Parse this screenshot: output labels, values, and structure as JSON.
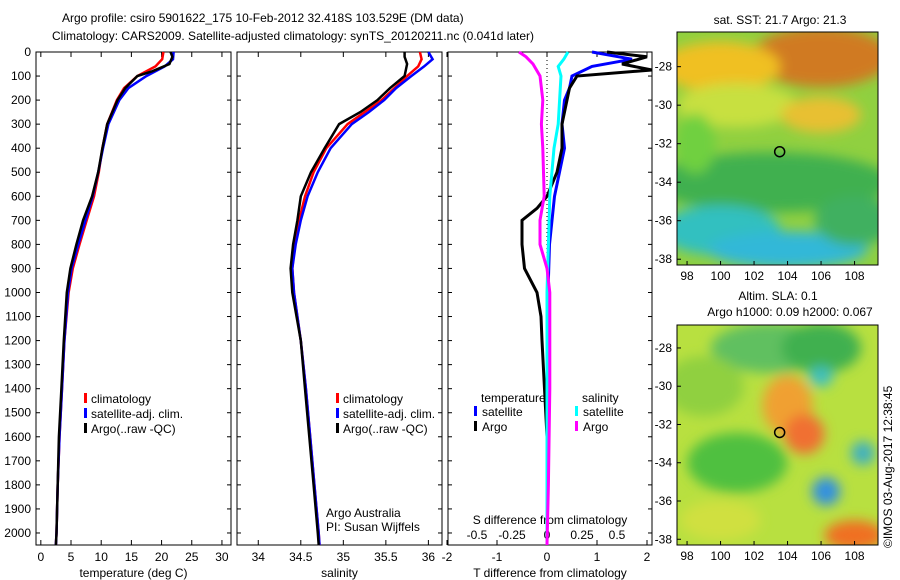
{
  "title_line1": "Argo profile: csiro 5901622_175 10-Feb-2012 32.418S 103.529E (DM data)",
  "title_line2": "Climatology: CARS2009. Satellite-adjusted climatology: synTS_20120211.nc (0.041d later)",
  "colors": {
    "climatology": "#ff0000",
    "satellite": "#0000ff",
    "argo": "#000000",
    "s_satellite": "#00ffff",
    "s_argo": "#ff00ff"
  },
  "chart_data": [
    {
      "type": "line",
      "name": "temperature",
      "xlabel": "temperature (deg C)",
      "ylabel": "depth",
      "xlim": [
        -0.8,
        31.5
      ],
      "ylim": [
        2050,
        0
      ],
      "xticks": [
        0,
        5,
        10,
        15,
        20,
        25,
        30
      ],
      "yticks": [
        0,
        100,
        200,
        300,
        400,
        500,
        600,
        700,
        800,
        900,
        1000,
        1100,
        1200,
        1300,
        1400,
        1500,
        1600,
        1700,
        1800,
        1900,
        2000
      ],
      "legend": [
        "climatology",
        "satellite-adj. clim.",
        "Argo(..raw -QC)"
      ],
      "series": [
        {
          "name": "climatology",
          "color": "#ff0000",
          "depth": [
            0,
            30,
            60,
            100,
            150,
            200,
            300,
            400,
            500,
            600,
            700,
            800,
            900,
            1000,
            1200,
            1400,
            1600,
            1800,
            2000,
            2050
          ],
          "values": [
            20.3,
            20.1,
            19,
            16,
            13.8,
            12.6,
            11,
            10.2,
            9.6,
            8.8,
            7.6,
            6.4,
            5.3,
            4.6,
            3.9,
            3.5,
            3.1,
            2.8,
            2.6,
            2.5
          ]
        },
        {
          "name": "satellite-adj. clim.",
          "color": "#0000ff",
          "depth": [
            0,
            30,
            60,
            100,
            150,
            200,
            300,
            400,
            500,
            600,
            700,
            800,
            900,
            1000,
            1200,
            1400,
            1600,
            1800,
            2000,
            2050
          ],
          "values": [
            22,
            21.9,
            20.5,
            17.5,
            14.5,
            13,
            11.2,
            10.3,
            9.5,
            8.6,
            7.4,
            6.2,
            5.1,
            4.5,
            3.9,
            3.5,
            3.1,
            2.8,
            2.6,
            2.5
          ]
        },
        {
          "name": "Argo(..raw -QC)",
          "color": "#000000",
          "depth": [
            0,
            20,
            50,
            80,
            100,
            150,
            200,
            300,
            400,
            500,
            600,
            700,
            800,
            900,
            1000,
            1200,
            1400,
            1600,
            1800,
            2000,
            2050
          ],
          "values": [
            21.5,
            21.8,
            21.3,
            18.5,
            16,
            14,
            12.7,
            11,
            10.2,
            9.5,
            8.5,
            7,
            5.9,
            4.9,
            4.3,
            3.8,
            3.4,
            3.0,
            2.8,
            2.6,
            2.5
          ]
        }
      ],
      "annotation": []
    },
    {
      "type": "line",
      "name": "salinity",
      "xlabel": "salinity",
      "xlim": [
        33.75,
        36.16
      ],
      "ylim": [
        2050,
        0
      ],
      "xticks": [
        34,
        34.5,
        35,
        35.5,
        36
      ],
      "xticklabels": [
        "34",
        "34.5",
        "35",
        "35.5",
        "36"
      ],
      "legend": [
        "climatology",
        "satellite-adj. clim.",
        "Argo(..raw -QC)"
      ],
      "annotation": [
        "Argo Australia",
        "PI: Susan Wijffels"
      ],
      "series": [
        {
          "name": "climatology",
          "color": "#ff0000",
          "depth": [
            0,
            30,
            60,
            100,
            150,
            200,
            250,
            300,
            400,
            500,
            600,
            700,
            800,
            900,
            1000,
            1200,
            1400,
            1600,
            1800,
            2000,
            2050
          ],
          "values": [
            35.9,
            35.92,
            35.88,
            35.75,
            35.6,
            35.45,
            35.25,
            35.05,
            34.8,
            34.65,
            34.55,
            34.48,
            34.43,
            34.4,
            34.42,
            34.5,
            34.56,
            34.61,
            34.66,
            34.71,
            34.72
          ]
        },
        {
          "name": "satellite-adj. clim.",
          "color": "#0000ff",
          "depth": [
            0,
            30,
            60,
            100,
            150,
            200,
            250,
            300,
            400,
            500,
            600,
            700,
            800,
            900,
            1000,
            1200,
            1400,
            1600,
            1800,
            2000,
            2050
          ],
          "values": [
            36.0,
            36.05,
            35.95,
            35.8,
            35.62,
            35.48,
            35.3,
            35.1,
            34.85,
            34.7,
            34.58,
            34.5,
            34.44,
            34.4,
            34.42,
            34.5,
            34.56,
            34.61,
            34.66,
            34.71,
            34.72
          ]
        },
        {
          "name": "Argo(..raw -QC)",
          "color": "#000000",
          "depth": [
            0,
            20,
            50,
            100,
            150,
            200,
            250,
            300,
            400,
            500,
            600,
            700,
            800,
            900,
            1000,
            1200,
            1400,
            1600,
            1800,
            2000,
            2050
          ],
          "values": [
            35.72,
            35.72,
            35.75,
            35.72,
            35.55,
            35.4,
            35.2,
            34.95,
            34.78,
            34.62,
            34.5,
            34.46,
            34.41,
            34.38,
            34.4,
            34.5,
            34.55,
            34.6,
            34.65,
            34.7,
            34.71
          ]
        }
      ]
    },
    {
      "type": "line",
      "name": "difference",
      "xlabel": "T difference from climatology",
      "x2label": "S difference from climatology",
      "xlim": [
        -1.98,
        2.1
      ],
      "ylim": [
        2050,
        0
      ],
      "xticks": [
        -2,
        -1,
        0,
        1,
        2
      ],
      "xticklabels": [
        "-2",
        "-1",
        "0",
        "1",
        "2"
      ],
      "s_ticks": [
        -0.5,
        -0.25,
        0,
        0.25,
        0.5
      ],
      "s_ticklabels": [
        "-0.5",
        "-0.25",
        "0",
        "0.25",
        "0.5"
      ],
      "legend_temperature": [
        "temperature",
        "satellite",
        "Argo"
      ],
      "legend_salinity": [
        "salinity",
        "satellite",
        "Argo"
      ],
      "series": [
        {
          "name": "T satellite",
          "axis": "T",
          "color": "#0000ff",
          "depth": [
            0,
            30,
            60,
            100,
            150,
            200,
            300,
            400,
            500,
            600,
            800,
            1000,
            1200,
            1400,
            1600,
            1700
          ],
          "values": [
            0.9,
            1.7,
            0.9,
            0.5,
            0.45,
            0.35,
            0.3,
            0.35,
            0.25,
            0.15,
            0.05,
            0.02,
            0,
            0,
            0,
            0
          ]
        },
        {
          "name": "T Argo",
          "axis": "T",
          "color": "#000000",
          "depth": [
            0,
            20,
            50,
            75,
            100,
            150,
            200,
            300,
            400,
            500,
            600,
            650,
            700,
            800,
            900,
            1000,
            1100,
            1200,
            1400,
            1600,
            1700
          ],
          "values": [
            1.2,
            2.0,
            1.5,
            2.1,
            0.6,
            0.45,
            0.4,
            0.3,
            0.3,
            0.2,
            0.0,
            -0.2,
            -0.5,
            -0.5,
            -0.45,
            -0.2,
            -0.12,
            -0.1,
            -0.05,
            0,
            0
          ]
        },
        {
          "name": "S satellite",
          "axis": "S",
          "color": "#00ffff",
          "depth": [
            0,
            30,
            60,
            100,
            200,
            300,
            400,
            600,
            800,
            1000,
            1400,
            2050
          ],
          "values": [
            0.15,
            0.12,
            0.08,
            0.1,
            0.09,
            0.08,
            0.05,
            0.02,
            0.01,
            0,
            0,
            0
          ]
        },
        {
          "name": "S Argo",
          "axis": "S",
          "color": "#ff00ff",
          "depth": [
            0,
            20,
            50,
            100,
            200,
            300,
            400,
            600,
            700,
            800,
            900,
            1000,
            1200,
            1400,
            1800,
            2050
          ],
          "values": [
            -0.2,
            -0.15,
            -0.1,
            -0.05,
            -0.03,
            -0.04,
            -0.03,
            -0.02,
            -0.05,
            -0.05,
            0,
            0.02,
            0.02,
            0.02,
            0.01,
            0
          ]
        }
      ]
    },
    {
      "type": "heatmap",
      "name": "sst_map",
      "title": "sat. SST: 21.7 Argo: 21.3",
      "xticks": [
        98,
        100,
        102,
        104,
        106,
        108
      ],
      "yticks": [
        -28,
        -30,
        -32,
        -34,
        -36,
        -38
      ],
      "xlim": [
        97.4,
        109.4
      ],
      "ylim": [
        -38.3,
        -26.2
      ],
      "argo_position": [
        103.529,
        -32.418
      ]
    },
    {
      "type": "heatmap",
      "name": "sla_map",
      "title_line1": "Altim. SLA: 0.1",
      "title_line2": "Argo h1000: 0.09 h2000: 0.067",
      "xticks": [
        98,
        100,
        102,
        104,
        106,
        108
      ],
      "yticks": [
        -28,
        -30,
        -32,
        -34,
        -36,
        -38
      ],
      "xlim": [
        97.4,
        109.4
      ],
      "ylim": [
        -38.3,
        -26.8
      ],
      "argo_position": [
        103.529,
        -32.418
      ]
    }
  ],
  "footer_stamp": "©IMOS 03-Aug-2017 12:38:45"
}
